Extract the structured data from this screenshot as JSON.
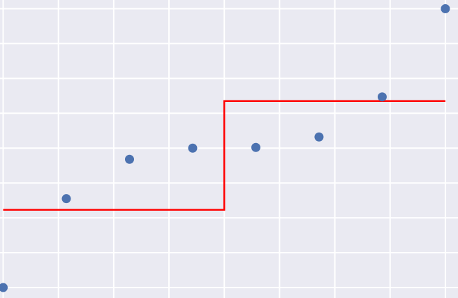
{
  "chart_data": {
    "type": "scatter",
    "title": "",
    "xlabel": "",
    "ylabel": "",
    "xlim": [
      -0.05,
      7.2
    ],
    "ylim": [
      -0.3,
      8.25
    ],
    "grid": true,
    "x_gridlines": [
      0,
      0.875,
      1.75,
      2.625,
      3.5,
      4.375,
      5.25,
      6.125,
      7.0
    ],
    "y_gridlines": [
      0,
      1,
      2,
      3,
      4,
      5,
      6,
      7,
      8
    ],
    "colors": {
      "background": "#eaeaf2",
      "grid": "#ffffff",
      "points": "#4c72b0",
      "fit_line": "#ff0000"
    },
    "series": [
      {
        "kind": "points",
        "x": [
          0,
          1,
          2,
          3,
          4,
          5,
          6,
          7
        ],
        "y": [
          0.0,
          2.55,
          3.68,
          4.0,
          4.02,
          4.32,
          5.47,
          8.0
        ]
      },
      {
        "kind": "step-line",
        "x": [
          0,
          3.5,
          3.5,
          7.0
        ],
        "y": [
          2.23,
          2.23,
          5.35,
          5.35
        ]
      }
    ]
  }
}
